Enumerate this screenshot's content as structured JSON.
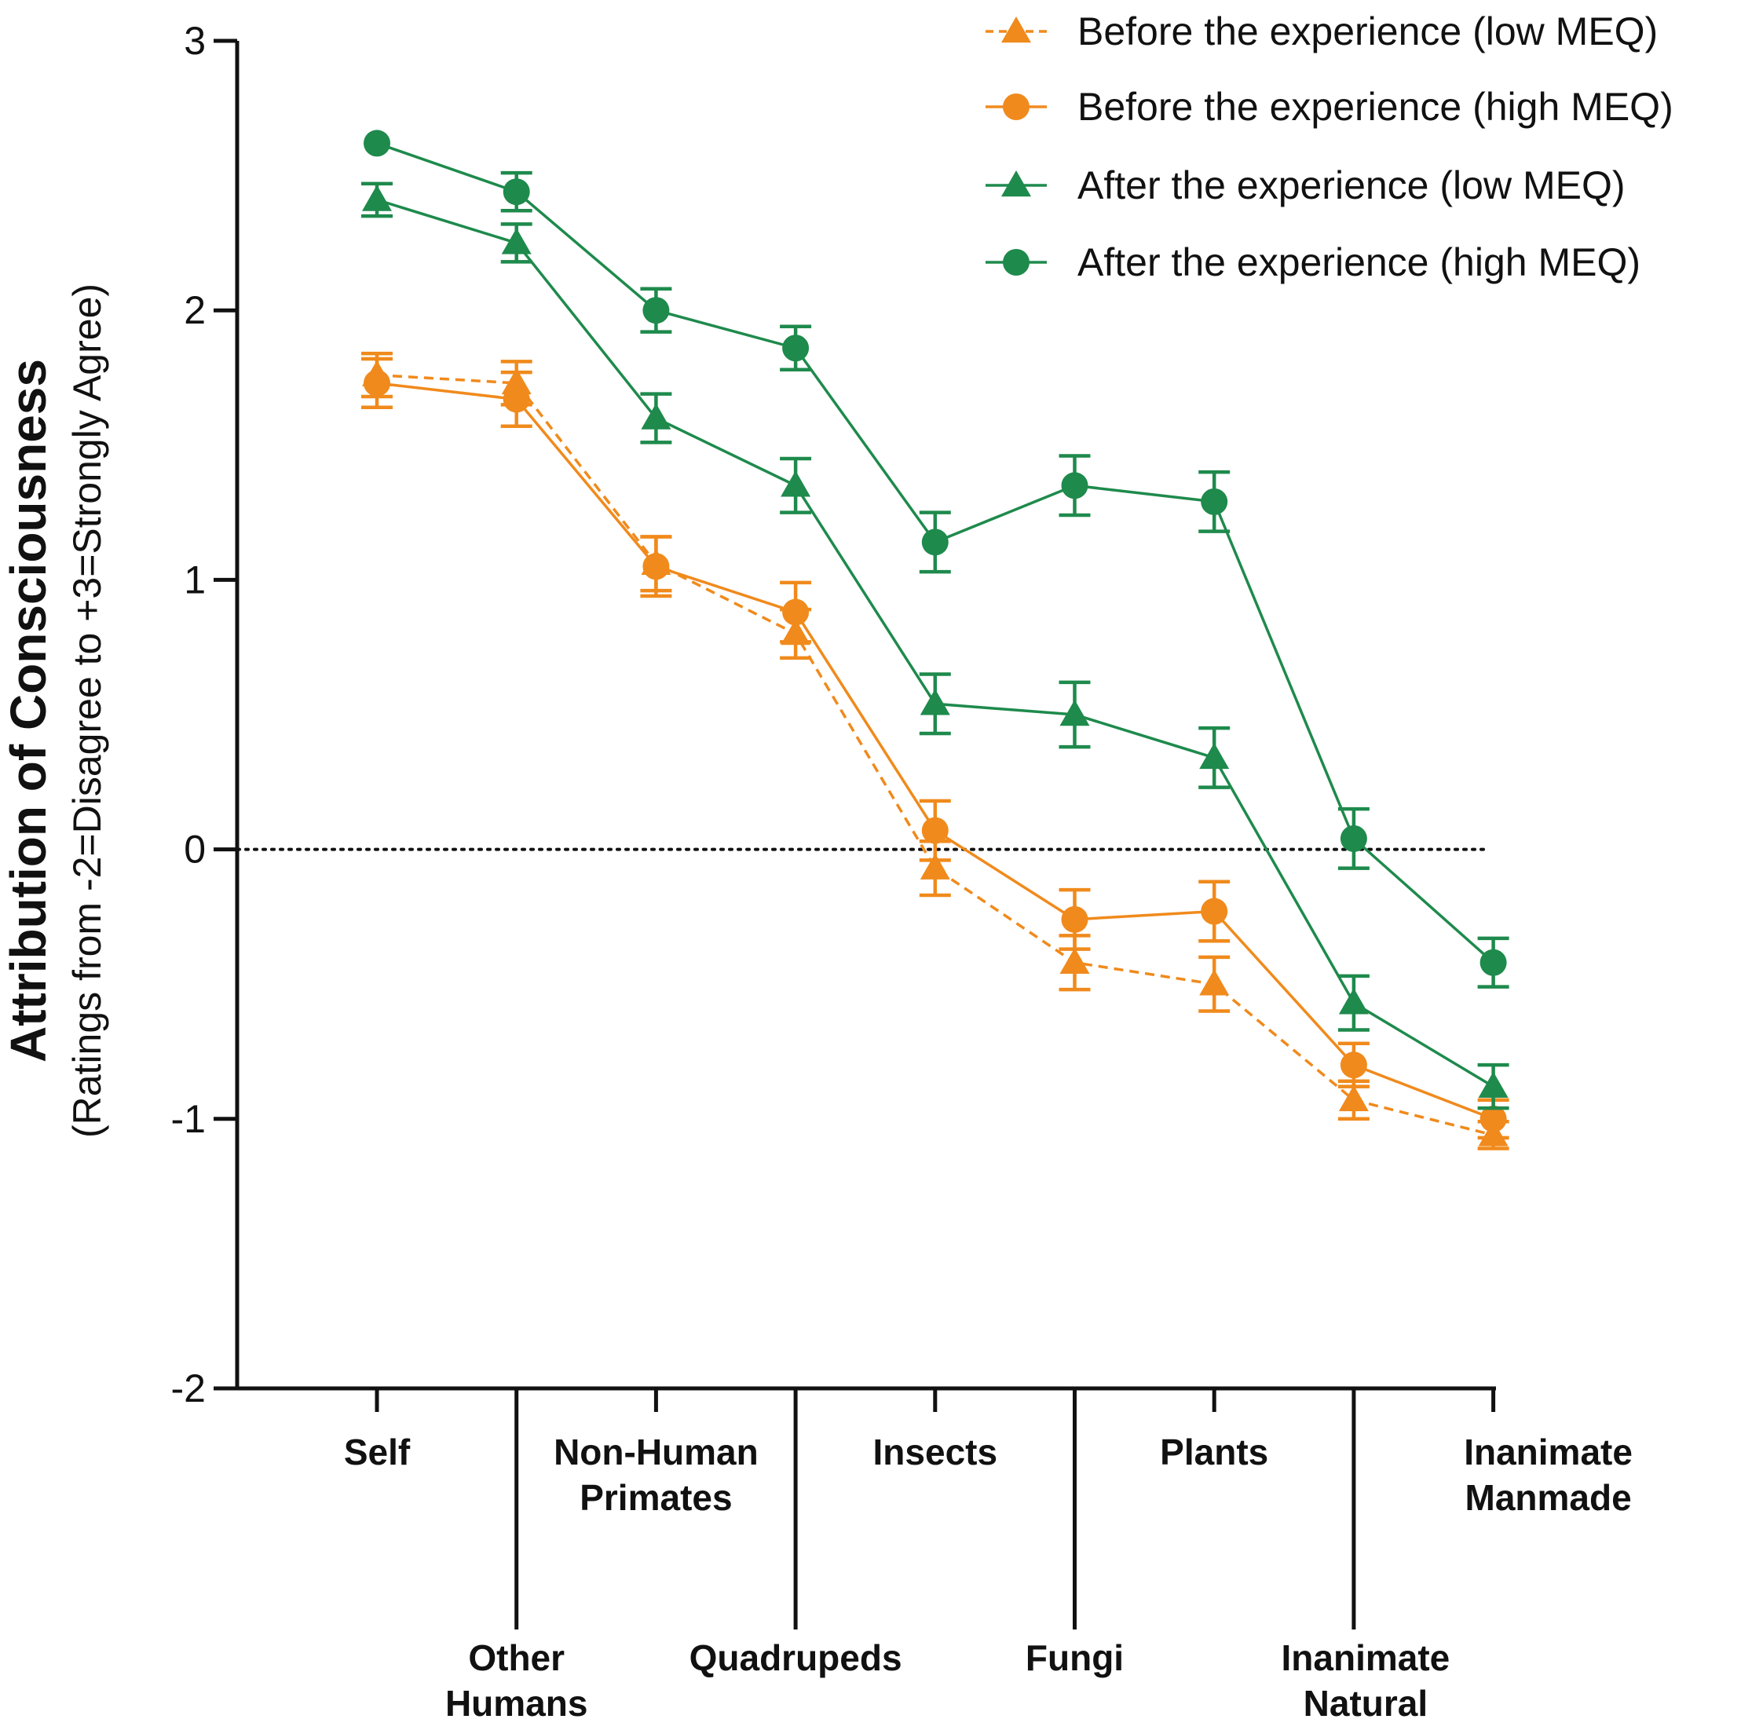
{
  "chart_data": {
    "type": "line",
    "ylabel": "Attribution of Consciousness",
    "ylabel_sub": "(Ratings from -2=Disagree to +3=Strongly Agree)",
    "ylim": [
      -2,
      3
    ],
    "yticks": [
      "3",
      "2",
      "1",
      "0",
      "-1",
      "-2"
    ],
    "reference_line": 0,
    "categories": [
      [
        "Self"
      ],
      [
        "Other",
        "Humans"
      ],
      [
        "Non-Human",
        "Primates"
      ],
      [
        "Quadrupeds"
      ],
      [
        "Insects"
      ],
      [
        "Fungi"
      ],
      [
        "Plants"
      ],
      [
        "Inanimate",
        "Natural"
      ],
      [
        "Inanimate",
        "Manmade"
      ]
    ],
    "colors": {
      "before": "#F08A1C",
      "after": "#1E8A4C"
    },
    "series": [
      {
        "name": "Before the experience (low MEQ)",
        "marker": "triangle",
        "dashed": true,
        "color": "#F08A1C",
        "values": [
          1.76,
          1.73,
          1.06,
          0.8,
          -0.07,
          -0.42,
          -0.5,
          -0.93,
          -1.06
        ],
        "errors": [
          0.08,
          0.08,
          0.1,
          0.09,
          0.1,
          0.1,
          0.1,
          0.07,
          0.05
        ]
      },
      {
        "name": "Before the experience (high MEQ)",
        "marker": "circle",
        "dashed": false,
        "color": "#F08A1C",
        "values": [
          1.73,
          1.67,
          1.05,
          0.88,
          0.07,
          -0.26,
          -0.23,
          -0.8,
          -1.0
        ],
        "errors": [
          0.09,
          0.1,
          0.11,
          0.11,
          0.11,
          0.11,
          0.11,
          0.08,
          0.07
        ]
      },
      {
        "name": "After the experience (low MEQ)",
        "marker": "triangle",
        "dashed": false,
        "color": "#1E8A4C",
        "values": [
          2.41,
          2.25,
          1.6,
          1.35,
          0.54,
          0.5,
          0.34,
          -0.57,
          -0.88
        ],
        "errors": [
          0.06,
          0.07,
          0.09,
          0.1,
          0.11,
          0.12,
          0.11,
          0.1,
          0.08
        ]
      },
      {
        "name": "After the experience (high MEQ)",
        "marker": "circle",
        "dashed": false,
        "color": "#1E8A4C",
        "values": [
          2.62,
          2.44,
          2.0,
          1.86,
          1.14,
          1.35,
          1.29,
          0.04,
          -0.42
        ],
        "errors": [
          0.0,
          0.07,
          0.08,
          0.08,
          0.11,
          0.11,
          0.11,
          0.11,
          0.09
        ]
      }
    ]
  }
}
